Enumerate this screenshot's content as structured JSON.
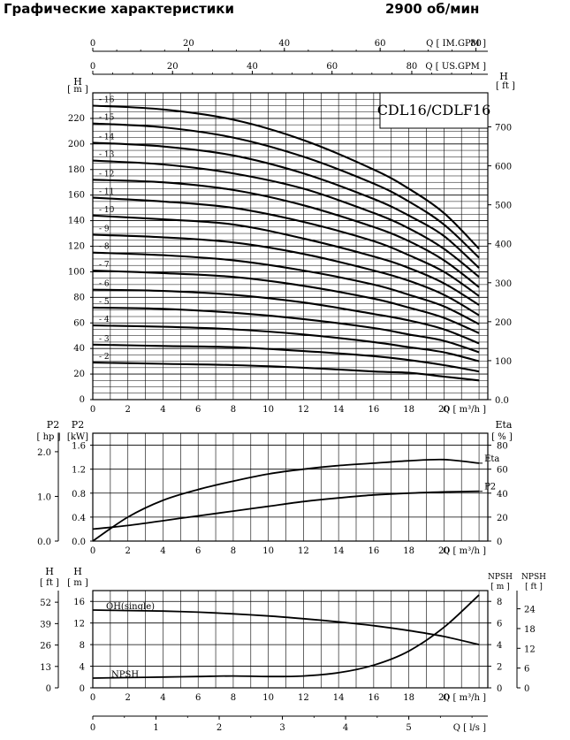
{
  "header": {
    "title": "Графические характеристики",
    "speed": "2900 об/мин"
  },
  "chart_data": [
    {
      "type": "line",
      "model": "CDL16/CDLF16",
      "x_unit_label": "Q [ m³/h ]",
      "x_ticks": [
        0,
        2,
        4,
        6,
        8,
        10,
        12,
        14,
        16,
        18,
        20
      ],
      "top_axis_1": {
        "label": "Q [ IM.GPM ]",
        "ticks": [
          0,
          20,
          40,
          60,
          80
        ]
      },
      "top_axis_2": {
        "label": "Q [ US.GPM ]",
        "ticks": [
          0,
          20,
          40,
          60,
          80
        ]
      },
      "ylabel_left": "H [ m ]",
      "ylabel_right": "H [ ft ]",
      "y_ticks": [
        0,
        20,
        40,
        60,
        80,
        100,
        120,
        140,
        160,
        180,
        200,
        220
      ],
      "y_right_ticks": [
        "0.0",
        "100",
        "200",
        "300",
        "400",
        "500",
        "600",
        "700"
      ],
      "xlim": [
        0,
        22.5
      ],
      "ylim": [
        0,
        240
      ],
      "stage_curves": [
        {
          "stages": 16,
          "label": "16",
          "x": [
            0,
            4,
            8,
            12,
            16,
            18,
            20,
            22
          ],
          "y": [
            230,
            227,
            219,
            203,
            180,
            165,
            146,
            118
          ]
        },
        {
          "stages": 15,
          "label": "15",
          "x": [
            0,
            4,
            8,
            12,
            16,
            18,
            20,
            22
          ],
          "y": [
            216,
            213,
            205,
            190,
            169,
            155,
            137,
            111
          ]
        },
        {
          "stages": 14,
          "label": "14",
          "x": [
            0,
            4,
            8,
            12,
            16,
            18,
            20,
            22
          ],
          "y": [
            201,
            198,
            191,
            177,
            157,
            144,
            128,
            103
          ]
        },
        {
          "stages": 13,
          "label": "13",
          "x": [
            0,
            4,
            8,
            12,
            16,
            18,
            20,
            22
          ],
          "y": [
            187,
            184,
            177,
            165,
            146,
            134,
            118,
            96
          ]
        },
        {
          "stages": 12,
          "label": "12",
          "x": [
            0,
            4,
            8,
            12,
            16,
            18,
            20,
            22
          ],
          "y": [
            172,
            170,
            164,
            152,
            135,
            124,
            109,
            88
          ]
        },
        {
          "stages": 11,
          "label": "11",
          "x": [
            0,
            4,
            8,
            12,
            16,
            18,
            20,
            22
          ],
          "y": [
            158,
            155,
            150,
            139,
            124,
            113,
            100,
            81
          ]
        },
        {
          "stages": 10,
          "label": "10",
          "x": [
            0,
            4,
            8,
            12,
            16,
            18,
            20,
            22
          ],
          "y": [
            144,
            141,
            137,
            126,
            112,
            103,
            91,
            74
          ]
        },
        {
          "stages": 9,
          "label": "9",
          "x": [
            0,
            4,
            8,
            12,
            16,
            18,
            20,
            22
          ],
          "y": [
            129,
            127,
            123,
            114,
            101,
            93,
            82,
            66
          ]
        },
        {
          "stages": 8,
          "label": "8",
          "x": [
            0,
            4,
            8,
            12,
            16,
            18,
            20,
            22
          ],
          "y": [
            115,
            113,
            109,
            101,
            90,
            82,
            73,
            59
          ]
        },
        {
          "stages": 7,
          "label": "7",
          "x": [
            0,
            4,
            8,
            12,
            16,
            18,
            20,
            22
          ],
          "y": [
            101,
            99,
            96,
            89,
            79,
            72,
            64,
            52
          ]
        },
        {
          "stages": 6,
          "label": "6",
          "x": [
            0,
            4,
            8,
            12,
            16,
            18,
            20,
            22
          ],
          "y": [
            86,
            85,
            82,
            76,
            67,
            62,
            55,
            44
          ]
        },
        {
          "stages": 5,
          "label": "5",
          "x": [
            0,
            4,
            8,
            12,
            16,
            18,
            20,
            22
          ],
          "y": [
            72,
            71,
            68,
            63,
            56,
            51,
            46,
            37
          ]
        },
        {
          "stages": 4,
          "label": "4",
          "x": [
            0,
            4,
            8,
            12,
            16,
            18,
            20,
            22
          ],
          "y": [
            58,
            57,
            55,
            51,
            45,
            41,
            37,
            30
          ]
        },
        {
          "stages": 3,
          "label": "3",
          "x": [
            0,
            4,
            8,
            12,
            16,
            18,
            20,
            22
          ],
          "y": [
            43,
            42,
            41,
            38,
            34,
            31,
            27,
            22
          ]
        },
        {
          "stages": 2,
          "label": "2",
          "x": [
            0,
            4,
            8,
            12,
            16,
            18,
            20,
            22
          ],
          "y": [
            29,
            28,
            27,
            25,
            22,
            21,
            18,
            15
          ]
        }
      ]
    },
    {
      "type": "line",
      "x_unit_label": "Q [ m³/h ]",
      "x_ticks": [
        0,
        2,
        4,
        6,
        8,
        10,
        12,
        14,
        16,
        18,
        20
      ],
      "ylabel_left_hp": "P2 [ hp ]",
      "ylabel_left_kw": "P2 [kW]",
      "ylabel_right": "Eta [ % ]",
      "hp_ticks": [
        "0.0",
        "1.0",
        "2.0"
      ],
      "kw_ticks": [
        "0.0",
        "0.4",
        "0.8",
        "1.2",
        "1.6"
      ],
      "eta_ticks": [
        0,
        20,
        40,
        60,
        80
      ],
      "kw_lim": [
        0,
        1.8
      ],
      "eta_lim": [
        0,
        90
      ],
      "series": [
        {
          "name": "Eta",
          "axis": "eta",
          "x": [
            0,
            2,
            4,
            6,
            8,
            10,
            12,
            14,
            16,
            18,
            20,
            22
          ],
          "y": [
            0,
            20,
            34,
            43,
            50,
            56,
            60,
            63,
            65,
            67,
            68,
            65
          ]
        },
        {
          "name": "P2",
          "axis": "kw",
          "x": [
            0,
            2,
            4,
            6,
            8,
            10,
            12,
            14,
            16,
            18,
            20,
            22
          ],
          "y": [
            0.2,
            0.26,
            0.34,
            0.42,
            0.5,
            0.58,
            0.66,
            0.72,
            0.77,
            0.8,
            0.82,
            0.83
          ]
        }
      ]
    },
    {
      "type": "line",
      "x_unit_label": "Q [ m³/h ]",
      "x_ticks": [
        0,
        2,
        4,
        6,
        8,
        10,
        12,
        14,
        16,
        18,
        20
      ],
      "ls_axis": {
        "label": "Q [ l/s ]",
        "ticks": [
          0,
          1,
          2,
          3,
          4,
          5
        ]
      },
      "ylabel_left_ft": "H [ ft ]",
      "ylabel_left_m": "H [ m ]",
      "ylabel_right_m": "NPSH [ m ]",
      "ylabel_right_ft": "NPSH [ ft ]",
      "ft_ticks": [
        0,
        13,
        26,
        39,
        52
      ],
      "m_ticks": [
        0,
        4,
        8,
        12,
        16
      ],
      "npsh_m_ticks": [
        0,
        2,
        4,
        6,
        8
      ],
      "npsh_ft_ticks": [
        0,
        6,
        12,
        18,
        24
      ],
      "h_lim": [
        0,
        18
      ],
      "npsh_lim": [
        0,
        9
      ],
      "series": [
        {
          "name": "QH(single)",
          "axis": "h",
          "x": [
            0,
            2,
            4,
            6,
            8,
            10,
            12,
            14,
            16,
            18,
            20,
            22
          ],
          "y": [
            14.4,
            14.3,
            14.2,
            14.0,
            13.7,
            13.3,
            12.8,
            12.2,
            11.5,
            10.6,
            9.5,
            8.0
          ]
        },
        {
          "name": "NPSH",
          "axis": "npsh",
          "x": [
            0,
            2,
            4,
            6,
            8,
            10,
            12,
            14,
            16,
            18,
            20,
            22
          ],
          "y": [
            0.9,
            0.95,
            1.0,
            1.05,
            1.1,
            1.05,
            1.1,
            1.4,
            2.1,
            3.4,
            5.6,
            8.6
          ]
        }
      ]
    }
  ]
}
